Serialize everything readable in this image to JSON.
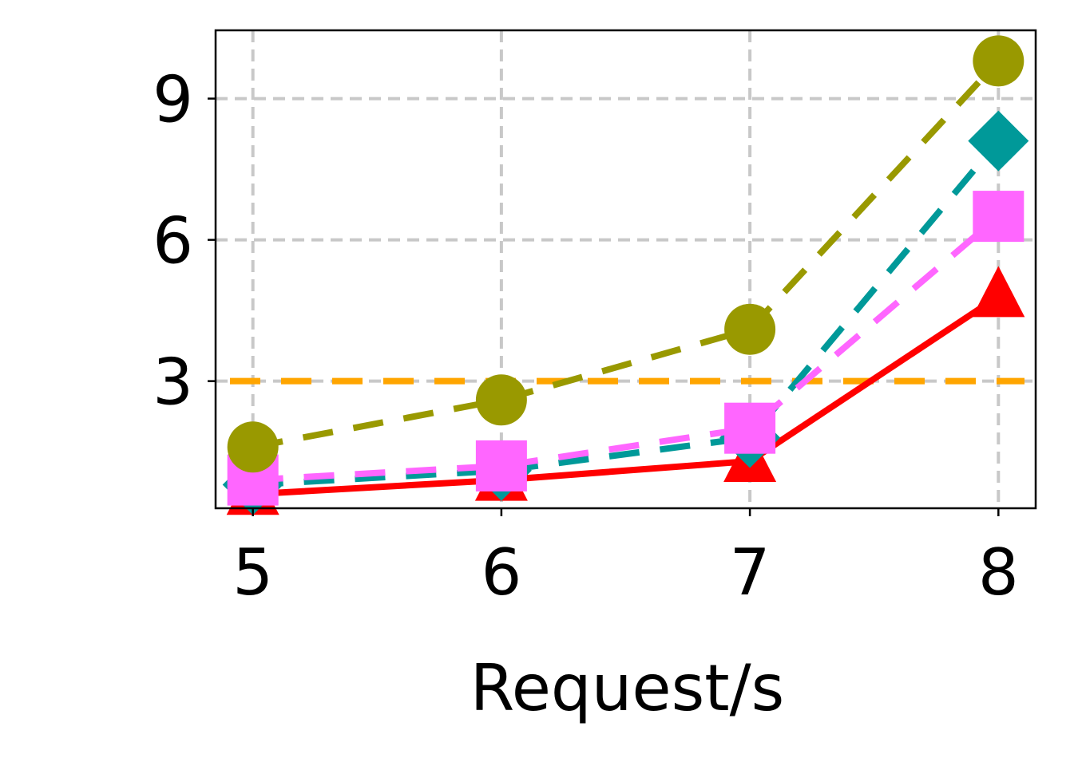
{
  "chart_data": {
    "type": "line",
    "title": "",
    "xlabel": "Request/s",
    "ylabel": "",
    "x": [
      5,
      6,
      7,
      8
    ],
    "x_ticks": [
      "5",
      "6",
      "7",
      "8"
    ],
    "y_ticks": [
      "3",
      "6",
      "9"
    ],
    "y_tick_values": [
      3,
      6,
      9
    ],
    "xlim": [
      4.85,
      8.15
    ],
    "ylim": [
      0.3,
      10.45
    ],
    "grid": true,
    "legend": "none",
    "reference_line": {
      "y": 3,
      "color": "#ffa500",
      "style": "dashed"
    },
    "series": [
      {
        "values": [
          0.6,
          0.9,
          1.3,
          4.8
        ],
        "color": "#ff0000",
        "marker": "triangle",
        "line": "solid"
      },
      {
        "values": [
          0.8,
          1.1,
          1.8,
          8.1
        ],
        "color": "#009999",
        "marker": "diamond",
        "line": "dashed"
      },
      {
        "values": [
          0.9,
          1.2,
          2.0,
          6.5
        ],
        "color": "#ff66ff",
        "marker": "square",
        "line": "dashed"
      },
      {
        "values": [
          1.6,
          2.6,
          4.1,
          9.8
        ],
        "color": "#999900",
        "marker": "circle",
        "line": "dashed"
      }
    ]
  }
}
